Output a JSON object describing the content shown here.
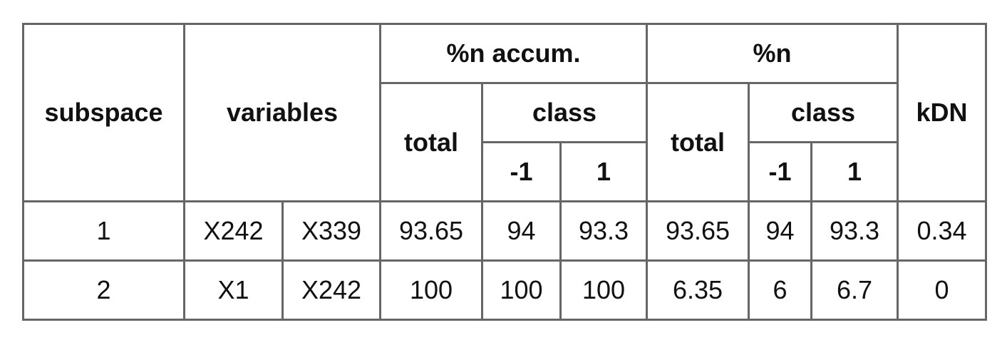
{
  "header": {
    "subspace": "subspace",
    "variables": "variables",
    "accum_group": "%n accum.",
    "pct_group": "%n",
    "kdn": "kDN",
    "total": "total",
    "class": "class",
    "class_neg": "-1",
    "class_pos": "1"
  },
  "rows": [
    {
      "subspace": "1",
      "var1": "X242",
      "var2": "X339",
      "accum_total": "93.65",
      "accum_neg": "94",
      "accum_pos": "93.3",
      "pct_total": "93.65",
      "pct_neg": "94",
      "pct_pos": "93.3",
      "kdn": "0.34"
    },
    {
      "subspace": "2",
      "var1": "X1",
      "var2": "X242",
      "accum_total": "100",
      "accum_neg": "100",
      "accum_pos": "100",
      "pct_total": "6.35",
      "pct_neg": "6",
      "pct_pos": "6.7",
      "kdn": "0"
    }
  ]
}
